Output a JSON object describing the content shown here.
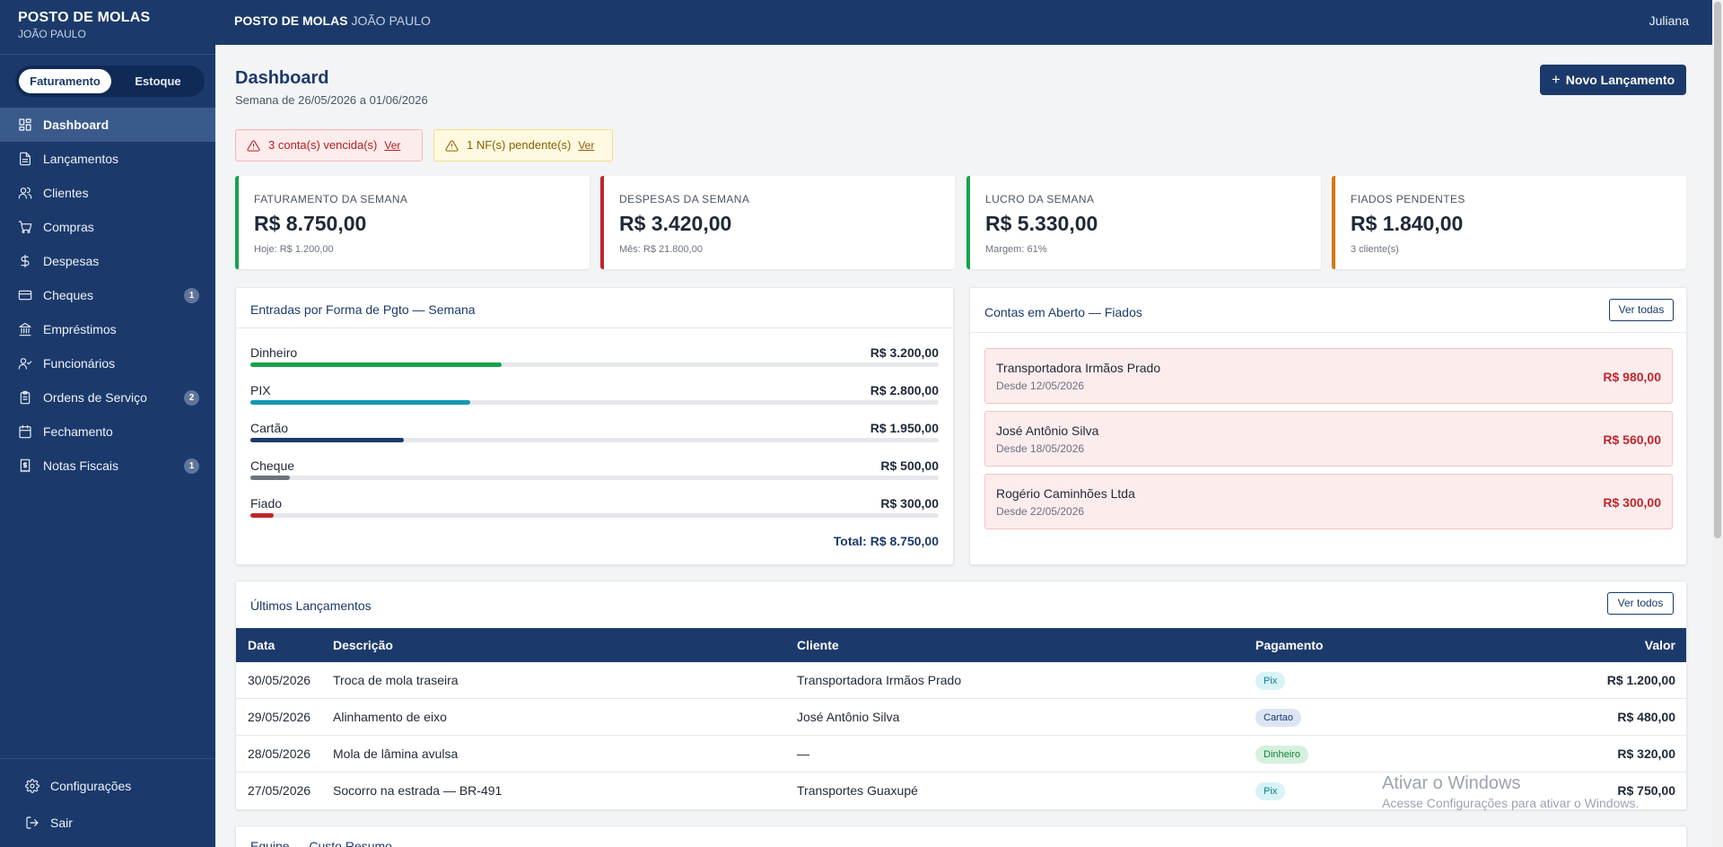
{
  "brand": {
    "name": "POSTO DE MOLAS",
    "owner": "JOÃO PAULO"
  },
  "module_toggle": {
    "active": "Faturamento",
    "inactive": "Estoque"
  },
  "sidebar": {
    "items": [
      {
        "label": "Dashboard",
        "icon": "layout-dashboard-icon",
        "active": true
      },
      {
        "label": "Lançamentos",
        "icon": "file-text-icon"
      },
      {
        "label": "Clientes",
        "icon": "users-icon"
      },
      {
        "label": "Compras",
        "icon": "shopping-cart-icon"
      },
      {
        "label": "Despesas",
        "icon": "dollar-sign-icon"
      },
      {
        "label": "Cheques",
        "icon": "credit-card-icon",
        "badge": "1"
      },
      {
        "label": "Empréstimos",
        "icon": "landmark-icon"
      },
      {
        "label": "Funcionários",
        "icon": "user-check-icon"
      },
      {
        "label": "Ordens de Serviço",
        "icon": "clipboard-list-icon",
        "badge": "2"
      },
      {
        "label": "Fechamento",
        "icon": "calendar-icon"
      },
      {
        "label": "Notas Fiscais",
        "icon": "receipt-icon",
        "badge": "1"
      }
    ],
    "bottom": [
      {
        "label": "Configurações",
        "icon": "gear-icon"
      },
      {
        "label": "Sair",
        "icon": "log-out-icon"
      }
    ]
  },
  "topbar": {
    "title": "POSTO DE MOLAS",
    "subtitle": "JOÃO PAULO",
    "user": "Juliana"
  },
  "page": {
    "title": "Dashboard",
    "subtitle": "Semana de 26/05/2026 a 01/06/2026",
    "new_button": "Novo Lançamento"
  },
  "alerts": {
    "overdue": {
      "text": "3 conta(s) vencida(s)",
      "link": "Ver"
    },
    "nf_pending": {
      "text": "1 NF(s) pendente(s)",
      "link": "Ver"
    }
  },
  "kpis": [
    {
      "label": "FATURAMENTO DA SEMANA",
      "value": "R$ 8.750,00",
      "sub": "Hoje: R$ 1.200,00",
      "color": "#16a34a"
    },
    {
      "label": "DESPESAS DA SEMANA",
      "value": "R$ 3.420,00",
      "sub": "Mês: R$ 21.800,00",
      "color": "#c0262d"
    },
    {
      "label": "LUCRO DA SEMANA",
      "value": "R$ 5.330,00",
      "sub": "Margem: 61%",
      "color": "#16a34a"
    },
    {
      "label": "FIADOS PENDENTES",
      "value": "R$ 1.840,00",
      "sub": "3 cliente(s)",
      "color": "#d97706"
    }
  ],
  "payments": {
    "title": "Entradas por Forma de Pgto — Semana",
    "rows": [
      {
        "label": "Dinheiro",
        "value": "R$ 3.200,00",
        "fraction": 0.3657,
        "color": "#16a34a"
      },
      {
        "label": "PIX",
        "value": "R$ 2.800,00",
        "fraction": 0.32,
        "color": "#0e97b3"
      },
      {
        "label": "Cartão",
        "value": "R$ 1.950,00",
        "fraction": 0.2229,
        "color": "#1b3a6b"
      },
      {
        "label": "Cheque",
        "value": "R$ 500,00",
        "fraction": 0.0571,
        "color": "#6b7280"
      },
      {
        "label": "Fiado",
        "value": "R$ 300,00",
        "fraction": 0.0343,
        "color": "#c0262d"
      }
    ],
    "total": "Total: R$ 8.750,00"
  },
  "fiados": {
    "title": "Contas em Aberto — Fiados",
    "button": "Ver todas",
    "items": [
      {
        "name": "Transportadora Irmãos Prado",
        "since": "Desde 12/05/2026",
        "value": "R$ 980,00"
      },
      {
        "name": "José Antônio Silva",
        "since": "Desde 18/05/2026",
        "value": "R$ 560,00"
      },
      {
        "name": "Rogério Caminhões Ltda",
        "since": "Desde 22/05/2026",
        "value": "R$ 300,00"
      }
    ]
  },
  "latest": {
    "title": "Últimos Lançamentos",
    "button": "Ver todos",
    "columns": [
      "Data",
      "Descrição",
      "Cliente",
      "Pagamento",
      "Valor"
    ],
    "rows": [
      {
        "date": "30/05/2026",
        "desc": "Troca de mola traseira",
        "client": "Transportadora Irmãos Prado",
        "payment": "Pix",
        "pay_bg": "#d7f3f5",
        "pay_fg": "#0e7f8f",
        "value": "R$ 1.200,00"
      },
      {
        "date": "29/05/2026",
        "desc": "Alinhamento de eixo",
        "client": "José Antônio Silva",
        "payment": "Cartao",
        "pay_bg": "#dbe5f3",
        "pay_fg": "#1b3a6b",
        "value": "R$ 480,00"
      },
      {
        "date": "28/05/2026",
        "desc": "Mola de lâmina avulsa",
        "client": "—",
        "payment": "Dinheiro",
        "pay_bg": "#d5f1dd",
        "pay_fg": "#15803d",
        "value": "R$ 320,00"
      },
      {
        "date": "27/05/2026",
        "desc": "Socorro na estrada — BR-491",
        "client": "Transportes Guaxupé",
        "payment": "Pix",
        "pay_bg": "#d7f3f5",
        "pay_fg": "#0e7f8f",
        "value": "R$ 750,00"
      }
    ]
  },
  "next_section": {
    "title": "Equipe — Custo Resumo"
  },
  "watermark": {
    "line1": "Ativar o Windows",
    "line2": "Acesse Configurações para ativar o Windows."
  }
}
